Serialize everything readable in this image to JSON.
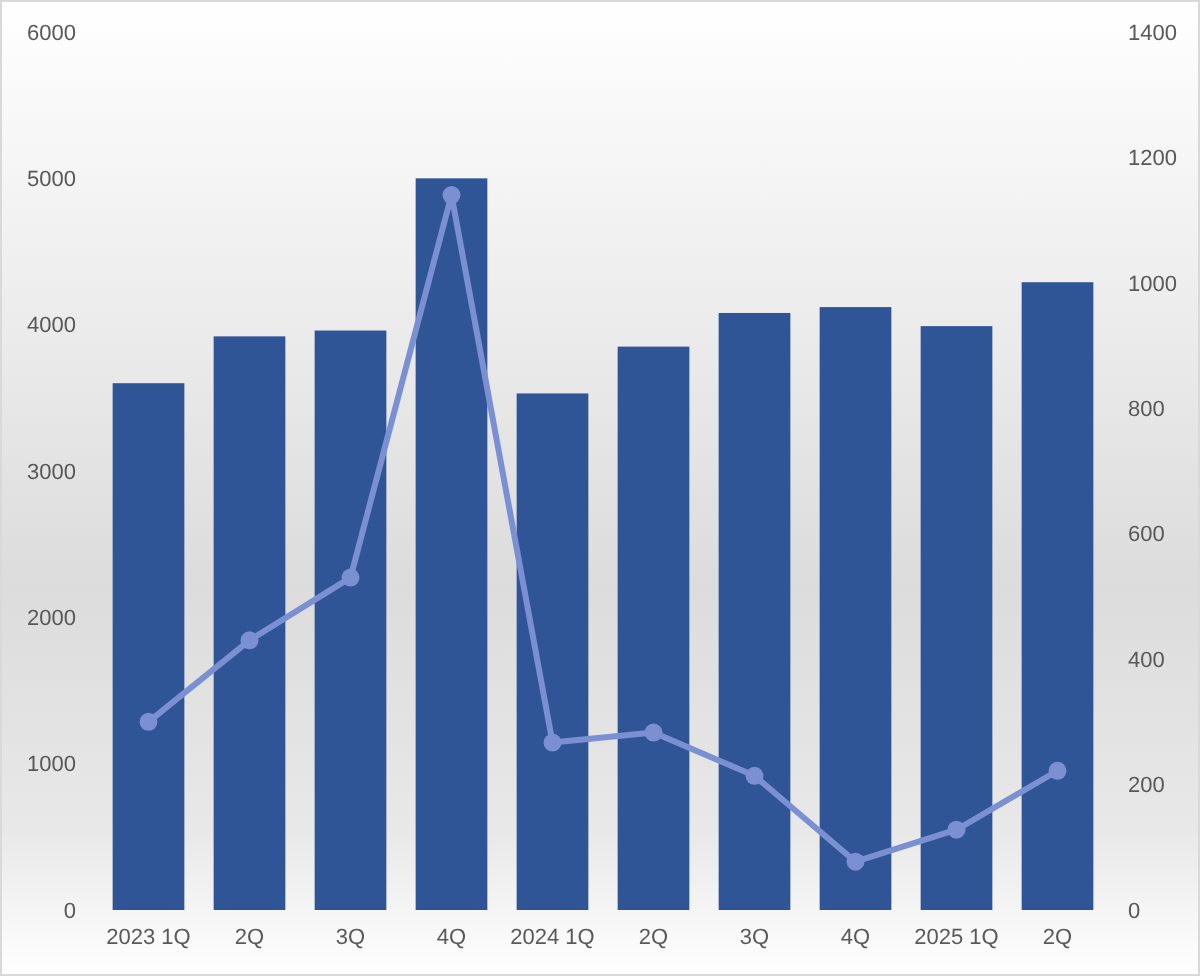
{
  "chart_data": {
    "type": "bar",
    "categories": [
      "2023 1Q",
      "2Q",
      "3Q",
      "4Q",
      "2024 1Q",
      "2Q",
      "3Q",
      "4Q",
      "2025 1Q",
      "2Q"
    ],
    "series": [
      {
        "color": "#2f5597",
        "values": [
          3600,
          3920,
          3960,
          5000,
          3530,
          3850,
          4080,
          4120,
          3990,
          4290
        ]
      },
      {
        "type": "line",
        "axis": "y2",
        "color": "#7b90d2",
        "values": [
          300,
          430,
          530,
          1140,
          267,
          283,
          214,
          77,
          128,
          222
        ]
      }
    ],
    "marker": "circle",
    "ylim": [
      0,
      6000
    ],
    "yticks": [
      0,
      1000,
      2000,
      3000,
      4000,
      5000,
      6000
    ],
    "y2lim": [
      0,
      1400
    ],
    "y2ticks": [
      0,
      200,
      400,
      600,
      800,
      1000,
      1200,
      1400
    ]
  }
}
